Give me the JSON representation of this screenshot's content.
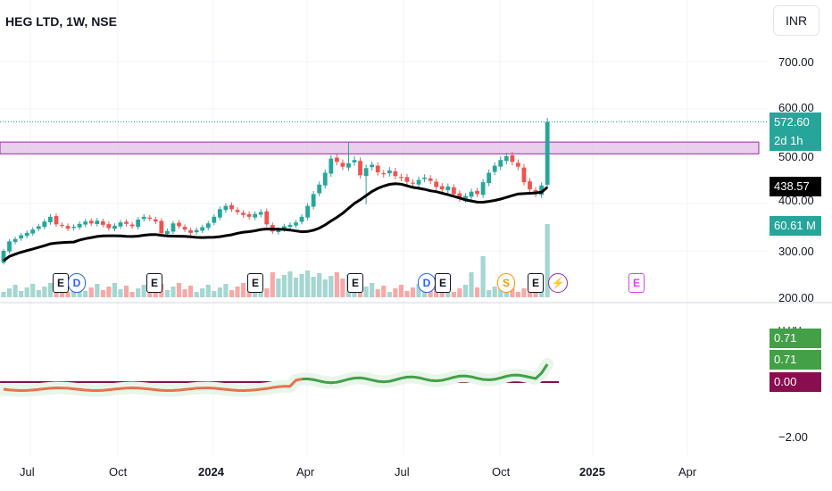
{
  "header": {
    "symbol_title": "HEG LTD, 1W, NSE"
  },
  "currency_button": "INR",
  "price_axis": {
    "labels": [
      "700.00",
      "600.00",
      "500.00",
      "400.00",
      "300.00",
      "200.00"
    ]
  },
  "indicator_axis": {
    "labels": [
      "0.00",
      "−2.00"
    ]
  },
  "time_axis": {
    "labels": [
      "Jul",
      "Oct",
      "2024",
      "Apr",
      "Jul",
      "Oct",
      "2025",
      "Apr"
    ]
  },
  "badges": {
    "last_price": "572.60",
    "countdown": "2d 1h",
    "ma_value": "438.57",
    "volume": "60.61 M",
    "ind_a": "0.71",
    "ind_b": "0.71",
    "ind_zero": "0.00"
  },
  "events": [
    {
      "label": "E",
      "kind": "earnings"
    },
    {
      "label": "D",
      "kind": "dividend"
    },
    {
      "label": "E",
      "kind": "earnings"
    },
    {
      "label": "E",
      "kind": "earnings"
    },
    {
      "label": "E",
      "kind": "earnings"
    },
    {
      "label": "D",
      "kind": "dividend"
    },
    {
      "label": "E",
      "kind": "earnings"
    },
    {
      "label": "S",
      "kind": "split"
    },
    {
      "label": "E",
      "kind": "earnings"
    },
    {
      "label": "⚡",
      "kind": "news"
    },
    {
      "label": "E",
      "kind": "earnings-upcoming"
    }
  ],
  "colors": {
    "up": "#26a69a",
    "down": "#ef5350",
    "ma": "#000000",
    "zone_fill": "#e1bee7",
    "zone_border": "#9c27b0",
    "ind_up": "#43a047",
    "ind_down": "#e57350",
    "ind_glow": "#e8f5e9",
    "last_price_badge": "#26a69a",
    "ind_zero_badge": "#880e4f"
  },
  "chart_data": {
    "type": "candlestick",
    "title": "HEG LTD, 1W, NSE",
    "x_axis": {
      "type": "time",
      "ticks": [
        "Jul",
        "Oct",
        "2024",
        "Apr",
        "Jul",
        "Oct",
        "2025",
        "Apr"
      ]
    },
    "y_axis": {
      "range": [
        200,
        750
      ],
      "ticks": [
        200,
        300,
        400,
        500,
        600,
        700
      ]
    },
    "last_price": 572.6,
    "moving_average_last": 438.57,
    "resistance_zone": [
      505,
      530
    ],
    "candles_close": [
      300,
      320,
      325,
      333,
      338,
      345,
      352,
      362,
      372,
      356,
      354,
      347,
      351,
      357,
      362,
      358,
      364,
      355,
      348,
      353,
      360,
      357,
      352,
      366,
      372,
      368,
      362,
      337,
      342,
      358,
      352,
      345,
      338,
      344,
      350,
      358,
      372,
      388,
      395,
      388,
      382,
      376,
      372,
      378,
      382,
      356,
      341,
      344,
      352,
      355,
      360,
      372,
      395,
      420,
      440,
      465,
      495,
      488,
      478,
      485,
      492,
      460,
      475,
      482,
      466,
      462,
      470,
      458,
      454,
      446,
      442,
      450,
      455,
      448,
      435,
      430,
      436,
      420,
      410,
      416,
      425,
      420,
      445,
      465,
      480,
      492,
      500,
      488,
      478,
      445,
      430,
      420,
      438,
      572.6
    ],
    "volume_last": "60.61 M",
    "indicator": {
      "values_last": [
        0.71,
        0.71
      ],
      "zero_line": 0.0,
      "y_ticks": [
        "0.00",
        "−2.00"
      ]
    }
  }
}
